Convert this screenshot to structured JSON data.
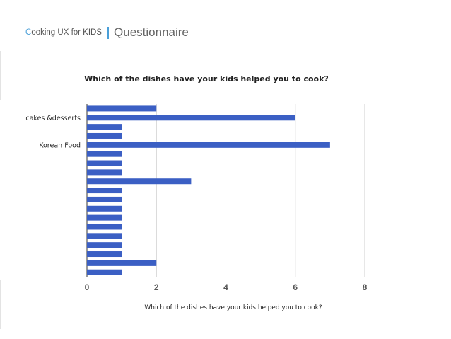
{
  "header": {
    "brand_initial": "C",
    "brand_rest": "ooking UX for KIDS",
    "section": "Questionnaire",
    "accent_color": "#4a9fd8"
  },
  "chart_data": {
    "type": "bar",
    "orientation": "horizontal",
    "title": "Which of the dishes have your kids helped you to cook?",
    "xlabel": "Which of the dishes have your kids helped you to cook?",
    "ylabel": "",
    "xlim": [
      0,
      8
    ],
    "xticks": [
      0,
      2,
      4,
      6,
      8
    ],
    "grid": true,
    "bar_color": "#3b5fc4",
    "categories": [
      "",
      "cakes &desserts",
      "",
      "",
      "Korean Food",
      "",
      "",
      "",
      "",
      "",
      "",
      "",
      "",
      "",
      "",
      "",
      "",
      "",
      ""
    ],
    "values": [
      2,
      6,
      1,
      1,
      7,
      1,
      1,
      1,
      3,
      1,
      1,
      1,
      1,
      1,
      1,
      1,
      1,
      2,
      1
    ]
  }
}
